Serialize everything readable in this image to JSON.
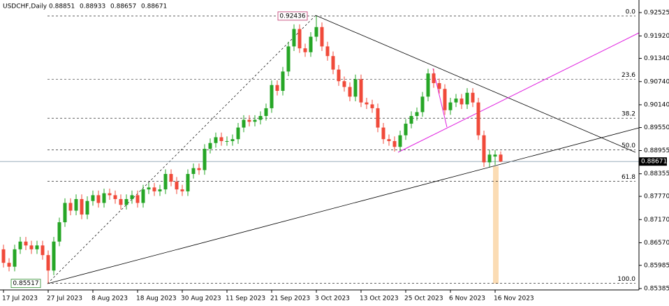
{
  "chart_data": {
    "type": "candlestick",
    "title": "USDCHF,Daily",
    "up_color": "#26a626",
    "down_color": "#f04a3a",
    "ylim": [
      0.85385,
      0.92525
    ],
    "yticks": [
      0.92525,
      {
        "value": 0.9192,
        "label": "0.91920"
      },
      {
        "value": 0.9134,
        "label": "0.91340"
      },
      {
        "value": 0.9074,
        "label": "0.90740"
      },
      {
        "value": 0.9014,
        "label": "0.90140"
      },
      {
        "value": 0.8955,
        "label": "0.89550"
      },
      0.88955,
      0.88355,
      {
        "value": 0.8777,
        "label": "0.87770"
      },
      {
        "value": 0.8717,
        "label": "0.87170"
      },
      {
        "value": 0.8657,
        "label": "0.86570"
      },
      0.85985,
      0.85385
    ],
    "fib_levels": [
      {
        "value": 0,
        "label": "0.0"
      },
      23.6,
      38.2,
      {
        "value": 50,
        "label": "50.0"
      },
      61.8,
      {
        "value": 100,
        "label": "100.0"
      }
    ],
    "categories": [
      "17 Jul 2023",
      null,
      null,
      null,
      null,
      null,
      null,
      null,
      "27 Jul 2023",
      null,
      null,
      null,
      null,
      null,
      null,
      null,
      "8 Aug 2023",
      null,
      null,
      null,
      null,
      null,
      null,
      null,
      "18 Aug 2023",
      null,
      null,
      null,
      null,
      null,
      null,
      null,
      "30 Aug 2023",
      null,
      null,
      null,
      null,
      null,
      null,
      null,
      "11 Sep 2023",
      null,
      null,
      null,
      null,
      null,
      null,
      null,
      "21 Sep 2023",
      null,
      null,
      null,
      null,
      null,
      null,
      null,
      "3 Oct 2023",
      null,
      null,
      null,
      null,
      null,
      null,
      null,
      "13 Oct 2023",
      null,
      null,
      null,
      null,
      null,
      null,
      null,
      "25 Oct 2023",
      null,
      null,
      null,
      null,
      null,
      null,
      null,
      "6 Nov 2023",
      null,
      null,
      null,
      null,
      null,
      null,
      null,
      "16 Nov 2023",
      null
    ],
    "ohlc": [
      [
        0.864,
        0.8652,
        0.8593,
        0.8605
      ],
      [
        0.8605,
        0.8617,
        0.8583,
        0.8595
      ],
      [
        0.8595,
        0.8652,
        0.8583,
        0.864
      ],
      [
        0.864,
        0.8672,
        0.8628,
        0.866
      ],
      [
        0.866,
        0.8672,
        0.8638,
        0.865
      ],
      [
        0.865,
        0.8662,
        0.8628,
        0.864
      ],
      [
        0.864,
        0.8662,
        0.8628,
        0.865
      ],
      [
        0.865,
        0.8662,
        0.8613,
        0.8625
      ],
      [
        0.8625,
        0.8637,
        0.85517,
        0.8585
      ],
      [
        0.8585,
        0.8672,
        0.8573,
        0.866
      ],
      [
        0.866,
        0.8722,
        0.8648,
        0.871
      ],
      [
        0.871,
        0.8772,
        0.8698,
        0.876
      ],
      [
        0.876,
        0.8772,
        0.8728,
        0.874
      ],
      [
        0.874,
        0.8782,
        0.8728,
        0.877
      ],
      [
        0.877,
        0.8782,
        0.8718,
        0.873
      ],
      [
        0.873,
        0.8777,
        0.8718,
        0.8765
      ],
      [
        0.8765,
        0.8792,
        0.8753,
        0.878
      ],
      [
        0.878,
        0.8792,
        0.8748,
        0.876
      ],
      [
        0.876,
        0.8797,
        0.8748,
        0.8785
      ],
      [
        0.8785,
        0.8797,
        0.8768,
        0.878
      ],
      [
        0.878,
        0.8792,
        0.8758,
        0.877
      ],
      [
        0.877,
        0.8782,
        0.8743,
        0.8755
      ],
      [
        0.8755,
        0.8782,
        0.8743,
        0.877
      ],
      [
        0.877,
        0.8792,
        0.8758,
        0.878
      ],
      [
        0.878,
        0.8792,
        0.8748,
        0.876
      ],
      [
        0.876,
        0.8807,
        0.8748,
        0.8795
      ],
      [
        0.8795,
        0.8812,
        0.8783,
        0.88
      ],
      [
        0.88,
        0.8812,
        0.8778,
        0.879
      ],
      [
        0.879,
        0.8807,
        0.8778,
        0.8795
      ],
      [
        0.8795,
        0.8847,
        0.8783,
        0.8835
      ],
      [
        0.8835,
        0.8847,
        0.8803,
        0.8815
      ],
      [
        0.8815,
        0.8827,
        0.8783,
        0.8795
      ],
      [
        0.8795,
        0.8807,
        0.8778,
        0.879
      ],
      [
        0.879,
        0.8847,
        0.8778,
        0.8835
      ],
      [
        0.8835,
        0.8862,
        0.8823,
        0.885
      ],
      [
        0.885,
        0.8862,
        0.8833,
        0.8845
      ],
      [
        0.8845,
        0.8912,
        0.8833,
        0.89
      ],
      [
        0.89,
        0.8927,
        0.8888,
        0.8915
      ],
      [
        0.8915,
        0.8942,
        0.8903,
        0.893
      ],
      [
        0.893,
        0.8942,
        0.8908,
        0.892
      ],
      [
        0.892,
        0.8932,
        0.8908,
        0.892
      ],
      [
        0.892,
        0.8937,
        0.8908,
        0.8925
      ],
      [
        0.8925,
        0.8967,
        0.8913,
        0.8955
      ],
      [
        0.8955,
        0.8987,
        0.8943,
        0.8975
      ],
      [
        0.8975,
        0.8987,
        0.8958,
        0.897
      ],
      [
        0.897,
        0.8987,
        0.8958,
        0.8975
      ],
      [
        0.8975,
        0.8997,
        0.8963,
        0.8985
      ],
      [
        0.8985,
        0.9017,
        0.8973,
        0.9005
      ],
      [
        0.9005,
        0.9077,
        0.8993,
        0.9065
      ],
      [
        0.9065,
        0.9077,
        0.9038,
        0.905
      ],
      [
        0.905,
        0.9112,
        0.9038,
        0.91
      ],
      [
        0.91,
        0.9177,
        0.9088,
        0.9165
      ],
      [
        0.9165,
        0.9222,
        0.9153,
        0.921
      ],
      [
        0.921,
        0.9222,
        0.9148,
        0.916
      ],
      [
        0.916,
        0.9172,
        0.9138,
        0.915
      ],
      [
        0.915,
        0.9202,
        0.9138,
        0.919
      ],
      [
        0.919,
        0.92436,
        0.9178,
        0.9215
      ],
      [
        0.9215,
        0.9227,
        0.9153,
        0.9165
      ],
      [
        0.9165,
        0.9177,
        0.9128,
        0.914
      ],
      [
        0.914,
        0.9152,
        0.9093,
        0.9105
      ],
      [
        0.9105,
        0.9117,
        0.9063,
        0.9075
      ],
      [
        0.9075,
        0.9087,
        0.9048,
        0.906
      ],
      [
        0.906,
        0.9072,
        0.9023,
        0.9035
      ],
      [
        0.9035,
        0.9092,
        0.9023,
        0.908
      ],
      [
        0.908,
        0.9092,
        0.9008,
        0.902
      ],
      [
        0.902,
        0.9032,
        0.9003,
        0.9015
      ],
      [
        0.9015,
        0.9027,
        0.8993,
        0.9005
      ],
      [
        0.9005,
        0.9017,
        0.8943,
        0.8955
      ],
      [
        0.8955,
        0.8967,
        0.8913,
        0.8925
      ],
      [
        0.8925,
        0.8937,
        0.8908,
        0.892
      ],
      [
        0.892,
        0.8932,
        0.8893,
        0.8905
      ],
      [
        0.8905,
        0.8947,
        0.8893,
        0.8935
      ],
      [
        0.8935,
        0.8977,
        0.8923,
        0.8965
      ],
      [
        0.8965,
        0.8997,
        0.8953,
        0.8985
      ],
      [
        0.8985,
        0.9007,
        0.8973,
        0.8995
      ],
      [
        0.8995,
        0.9047,
        0.8983,
        0.9035
      ],
      [
        0.9035,
        0.9107,
        0.9023,
        0.9095
      ],
      [
        0.9095,
        0.9107,
        0.9058,
        0.907
      ],
      [
        0.907,
        0.9082,
        0.9043,
        0.9055
      ],
      [
        0.9055,
        0.9067,
        0.8988,
        0.9
      ],
      [
        0.9,
        0.9032,
        0.8988,
        0.902
      ],
      [
        0.902,
        0.9042,
        0.9008,
        0.903
      ],
      [
        0.903,
        0.9042,
        0.9003,
        0.9015
      ],
      [
        0.9015,
        0.9057,
        0.9003,
        0.9045
      ],
      [
        0.9045,
        0.9057,
        0.9008,
        0.902
      ],
      [
        0.902,
        0.9032,
        0.8923,
        0.8935
      ],
      [
        0.8935,
        0.8947,
        0.8853,
        0.8865
      ],
      [
        0.8865,
        0.8897,
        0.8853,
        0.8885
      ],
      [
        0.888,
        0.8897,
        0.8858,
        0.8885
      ],
      [
        0.88851,
        0.88933,
        0.88657,
        0.88671
      ]
    ]
  }
}
